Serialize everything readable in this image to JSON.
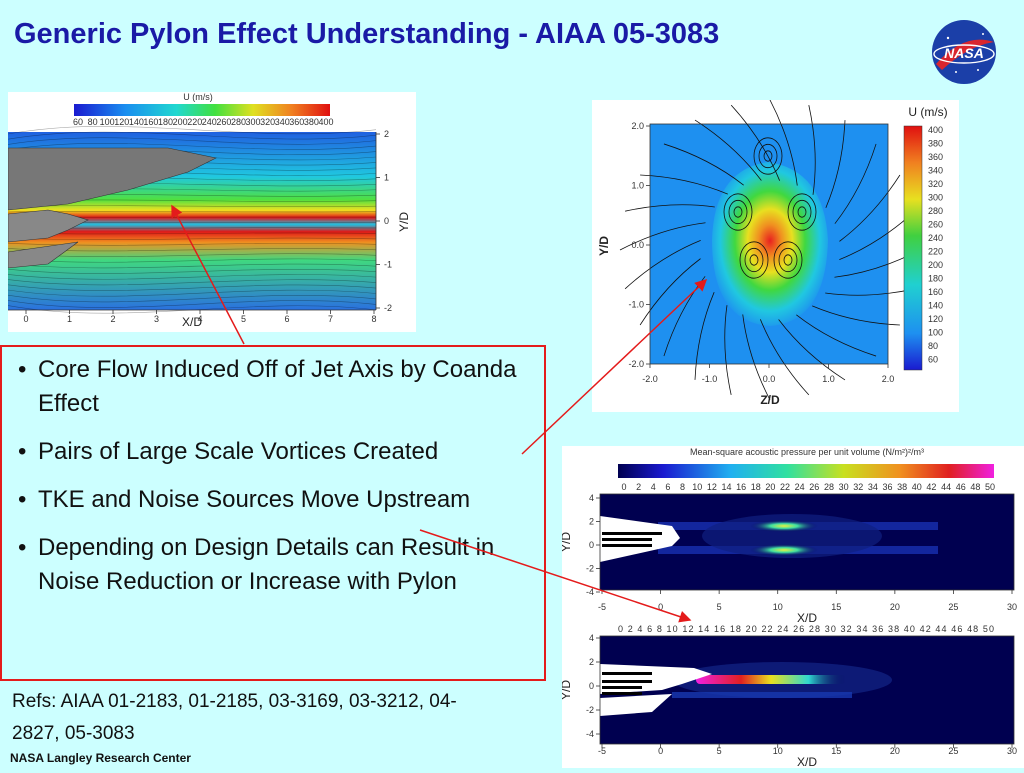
{
  "slide": {
    "title": "Generic Pylon Effect Understanding - AIAA 05-3083",
    "logo_text": "NASA",
    "bullets": [
      "Core Flow Induced Off of Jet Axis by Coanda Effect",
      "Pairs of Large Scale Vortices Created",
      "TKE and Noise Sources Move Upstream",
      "Depending on Design Details can Result in Noise Reduction or Increase with Pylon"
    ],
    "refs": "Refs: AIAA 01-2183, 01-2185, 03-3169, 03-3212, 04-2827, 05-3083",
    "footer": "NASA Langley Research Center"
  },
  "colors": {
    "title": "#1a1aa6",
    "background": "#ccffff",
    "arrow": "#e41b1b",
    "box_border": "#e41b1b"
  },
  "figure_a": {
    "legend_title": "U (m/s)",
    "legend_ticks": [
      "60",
      "80",
      "100",
      "120",
      "140",
      "160",
      "180",
      "200",
      "220",
      "240",
      "260",
      "280",
      "300",
      "320",
      "340",
      "360",
      "380",
      "400"
    ],
    "x_label": "X/D",
    "y_label": "Y/D",
    "x_ticks": [
      "0",
      "1",
      "2",
      "3",
      "4",
      "5",
      "6",
      "7",
      "8"
    ],
    "y_ticks": [
      "2",
      "1",
      "0",
      "-1",
      "-2"
    ]
  },
  "figure_b": {
    "legend_title": "U (m/s)",
    "legend_ticks": [
      "400",
      "380",
      "360",
      "340",
      "320",
      "300",
      "280",
      "260",
      "240",
      "220",
      "200",
      "180",
      "160",
      "140",
      "120",
      "100",
      "80",
      "60"
    ],
    "x_label": "Z/D",
    "y_label": "Y/D",
    "x_ticks": [
      "-2.0",
      "-1.0",
      "0.0",
      "1.0",
      "2.0"
    ],
    "y_ticks": [
      "2.0",
      "1.0",
      "0.0",
      "-1.0",
      "-2.0"
    ]
  },
  "figure_c": {
    "legend_title": "Mean-square acoustic pressure per unit volume (N/m²)²/m³",
    "legend_ticks": [
      "0",
      "2",
      "4",
      "6",
      "8",
      "10",
      "12",
      "14",
      "16",
      "18",
      "20",
      "22",
      "24",
      "26",
      "28",
      "30",
      "32",
      "34",
      "36",
      "38",
      "40",
      "42",
      "44",
      "46",
      "48",
      "50"
    ],
    "x_label": "X/D",
    "y_label": "Y/D",
    "x_ticks": [
      "-5",
      "0",
      "5",
      "10",
      "15",
      "20",
      "25",
      "30"
    ],
    "y_ticks": [
      "4",
      "2",
      "0",
      "-2",
      "-4"
    ]
  },
  "figure_d": {
    "partial_legend_ticks": "0 2 4 6 8 10 12 14 16 18 20 22 24 26 28 30 32 34 36 38 40 42 44 46 48 50",
    "x_label": "X/D",
    "y_label": "Y/D",
    "x_ticks": [
      "-5",
      "0",
      "5",
      "10",
      "15",
      "20",
      "25",
      "30"
    ],
    "y_ticks": [
      "4",
      "2",
      "0",
      "-2",
      "-4"
    ]
  }
}
